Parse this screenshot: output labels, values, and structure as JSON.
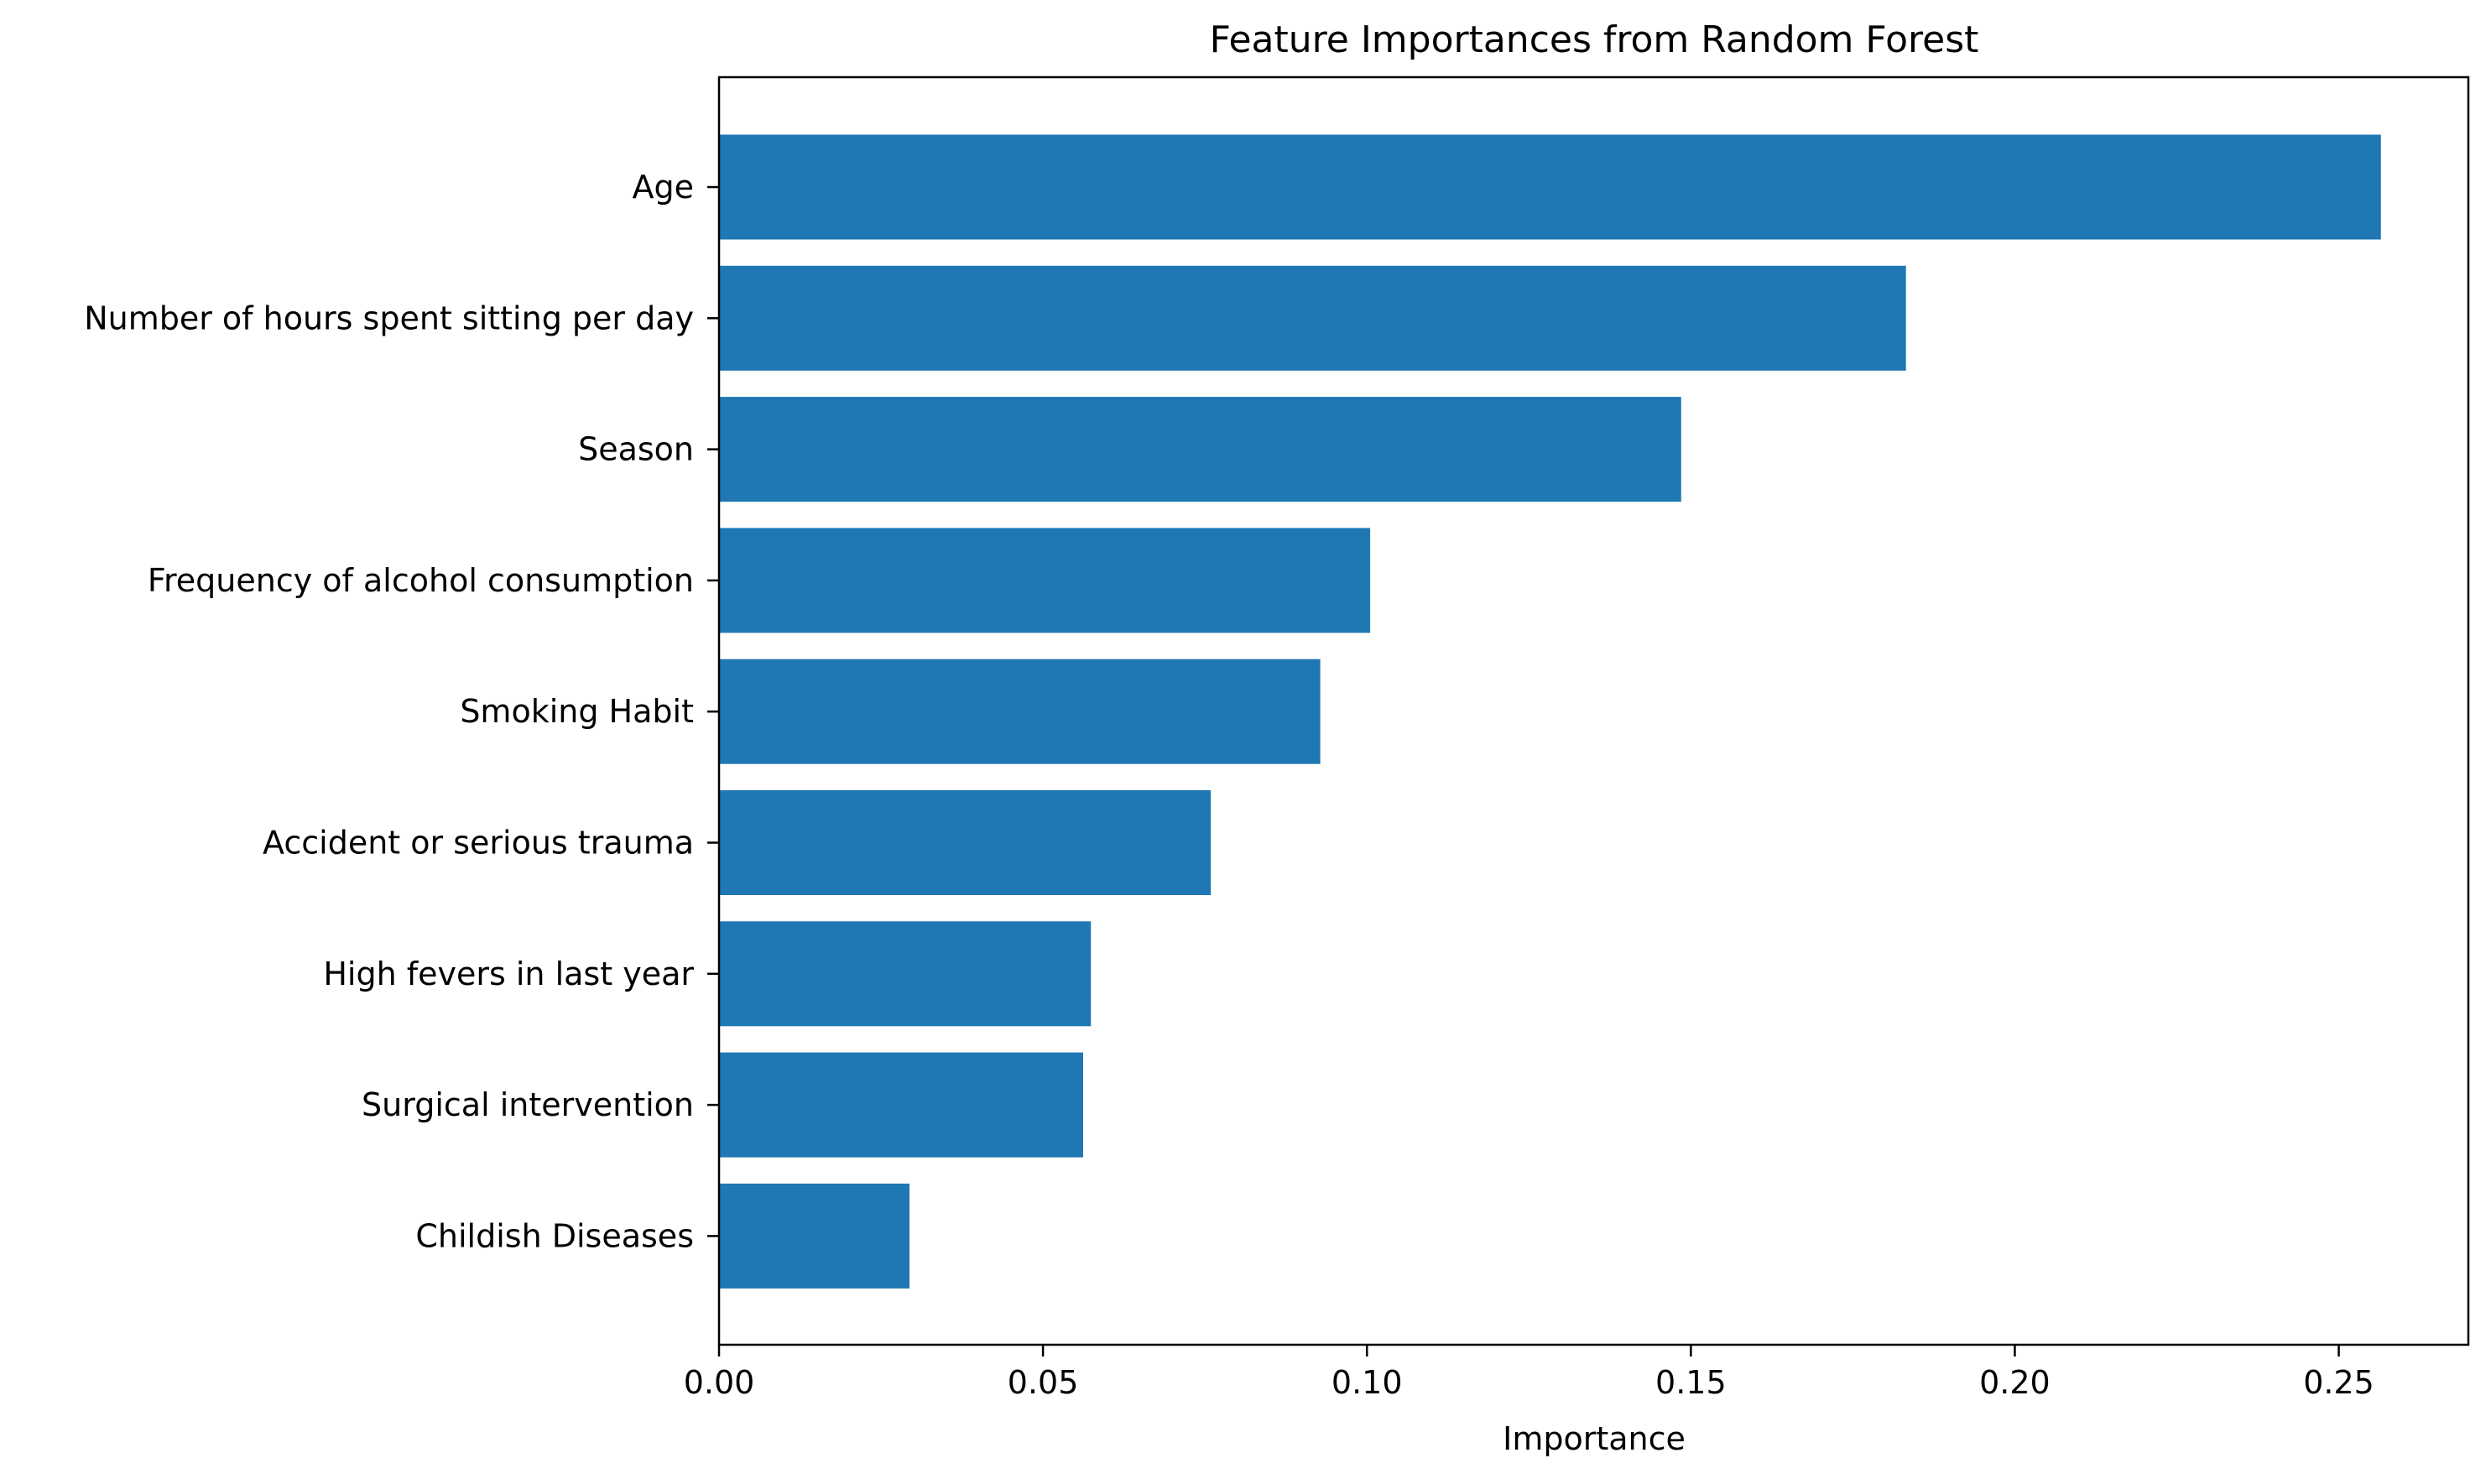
{
  "chart_data": {
    "type": "bar",
    "orientation": "horizontal",
    "title": "Feature Importances from Random Forest",
    "xlabel": "Importance",
    "ylabel": "",
    "categories": [
      "Age",
      "Number of hours spent sitting per day",
      "Season",
      "Frequency of alcohol consumption",
      "Smoking Habit",
      "Accident or serious trauma",
      "High fevers in last year",
      "Surgical intervention",
      "Childish Diseases"
    ],
    "values": [
      0.2565,
      0.1832,
      0.1485,
      0.1005,
      0.0928,
      0.0759,
      0.0574,
      0.0562,
      0.0294
    ],
    "xlim": [
      0,
      0.27
    ],
    "xticks": [
      0.0,
      0.05,
      0.1,
      0.15,
      0.2,
      0.25
    ],
    "xtick_labels": [
      "0.00",
      "0.05",
      "0.10",
      "0.15",
      "0.20",
      "0.25"
    ],
    "bar_color": "#1f77b4",
    "grid": false,
    "legend": "none"
  }
}
